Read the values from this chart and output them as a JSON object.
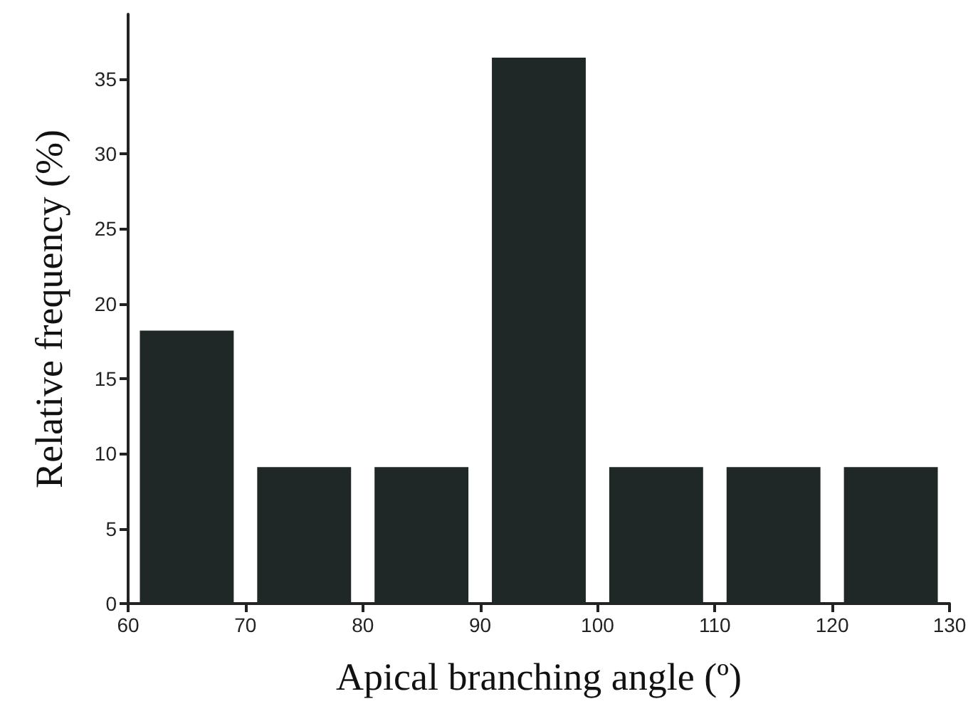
{
  "chart_data": {
    "type": "histogram",
    "xlabel": "Apical branching angle (º)",
    "ylabel": "Relative frequency (%)",
    "bins": [
      60,
      70,
      80,
      90,
      100,
      110,
      120,
      130
    ],
    "values": [
      18.2,
      9.1,
      9.1,
      36.4,
      9.1,
      9.1,
      9.1
    ],
    "color": "#1f2826",
    "xlim": [
      60,
      130
    ],
    "xticks": [
      60,
      70,
      80,
      90,
      100,
      110,
      120,
      130
    ],
    "ylim": [
      0,
      39.3
    ],
    "yticks": [
      0,
      5,
      10,
      15,
      20,
      25,
      30,
      35
    ],
    "grid": false
  }
}
